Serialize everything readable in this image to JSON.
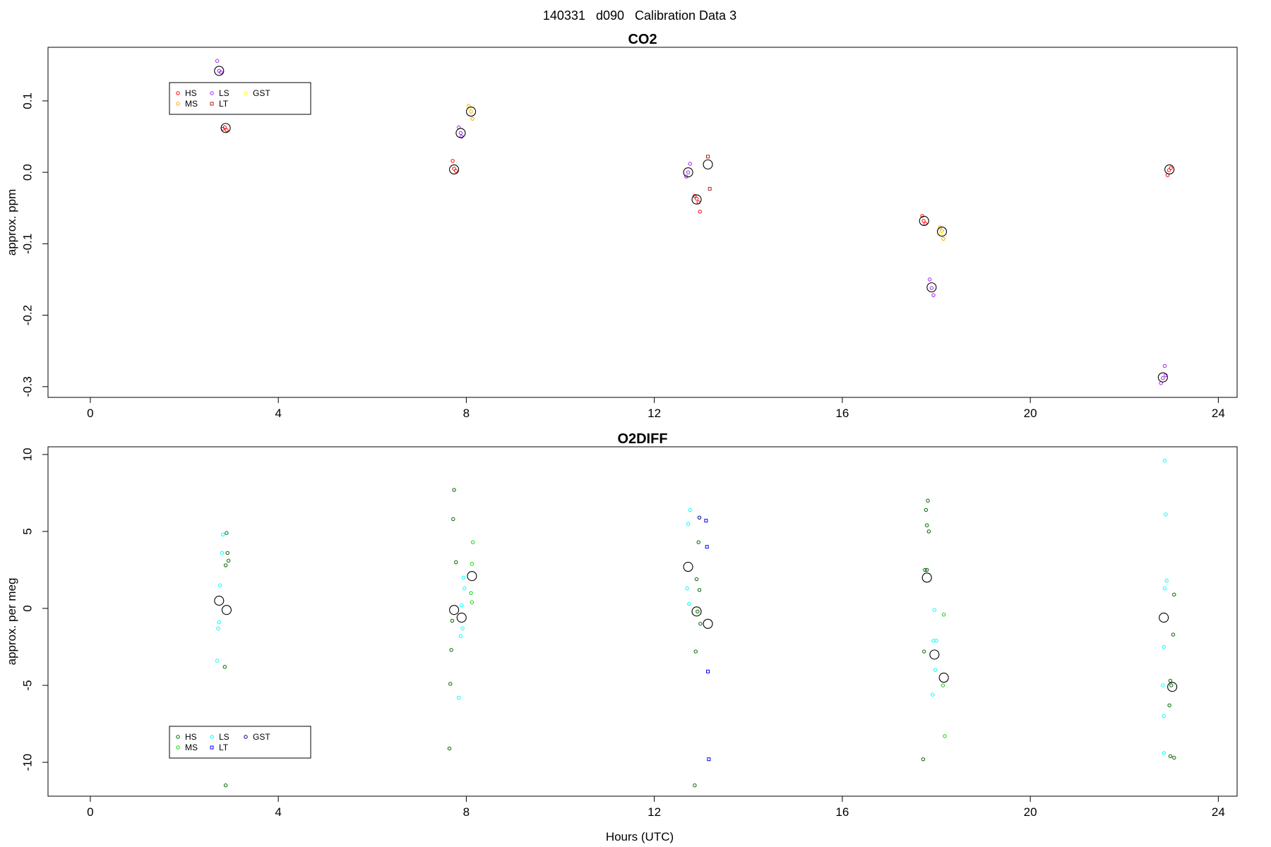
{
  "figure": {
    "title": "140331   d090   Calibration Data 3",
    "xlabel": "Hours (UTC)"
  },
  "chart_data": [
    {
      "type": "scatter",
      "title": "CO2",
      "xlabel": "",
      "ylabel": "approx. ppm",
      "xlim": [
        -0.9,
        24.4
      ],
      "ylim": [
        -0.315,
        0.175
      ],
      "xticks": [
        0,
        4,
        8,
        12,
        16,
        20,
        24
      ],
      "xticklabels": [
        "0",
        "4",
        "8",
        "12",
        "16",
        "20",
        "24"
      ],
      "yticks": [
        0.1,
        0.0,
        -0.1,
        -0.2,
        -0.3
      ],
      "yticklabels": [
        "0.1",
        "0.0",
        "-0.1",
        "-0.2",
        "-0.3"
      ],
      "grid": false,
      "legend_position": "top-left",
      "legend": [
        {
          "label": "HS",
          "color": "#ff0000",
          "marker": "circle"
        },
        {
          "label": "MS",
          "color": "#ffa500",
          "marker": "circle"
        },
        {
          "label": "LS",
          "color": "#a020f0",
          "marker": "circle"
        },
        {
          "label": "LT",
          "color": "#b22222",
          "marker": "square"
        },
        {
          "label": "GST",
          "color": "#ffff00",
          "marker": "circle"
        }
      ],
      "series": [
        {
          "name": "HS",
          "color": "#ff0000",
          "marker": "circle",
          "points": [
            [
              2.86,
              0.063
            ],
            [
              2.9,
              0.059
            ],
            [
              2.82,
              0.061
            ],
            [
              7.74,
              0.005
            ],
            [
              7.78,
              0.002
            ],
            [
              7.71,
              0.016
            ],
            [
              12.9,
              -0.037
            ],
            [
              12.94,
              -0.042
            ],
            [
              12.86,
              -0.033
            ],
            [
              12.97,
              -0.055
            ],
            [
              17.73,
              -0.068
            ],
            [
              17.77,
              -0.072
            ],
            [
              17.7,
              -0.061
            ],
            [
              22.95,
              0.003
            ],
            [
              22.99,
              0.006
            ],
            [
              22.92,
              -0.004
            ]
          ]
        },
        {
          "name": "MS",
          "color": "#ffa500",
          "marker": "circle",
          "points": [
            [
              8.1,
              0.085
            ],
            [
              8.05,
              0.093
            ],
            [
              8.13,
              0.075
            ],
            [
              18.12,
              -0.082
            ],
            [
              18.08,
              -0.077
            ],
            [
              18.15,
              -0.093
            ]
          ]
        },
        {
          "name": "LS",
          "color": "#a020f0",
          "marker": "circle",
          "points": [
            [
              2.74,
              0.142
            ],
            [
              2.7,
              0.156
            ],
            [
              2.78,
              0.14
            ],
            [
              7.88,
              0.055
            ],
            [
              7.84,
              0.063
            ],
            [
              7.9,
              0.05
            ],
            [
              12.72,
              0.0
            ],
            [
              12.76,
              0.012
            ],
            [
              12.68,
              -0.006
            ],
            [
              17.9,
              -0.162
            ],
            [
              17.86,
              -0.15
            ],
            [
              17.94,
              -0.172
            ],
            [
              22.82,
              -0.288
            ],
            [
              22.86,
              -0.271
            ],
            [
              22.78,
              -0.295
            ],
            [
              22.88,
              -0.284
            ]
          ]
        },
        {
          "name": "LT",
          "color": "#b22222",
          "marker": "square",
          "points": [
            [
              13.14,
              0.022
            ],
            [
              13.18,
              -0.023
            ]
          ]
        },
        {
          "name": "GST",
          "color": "#ffff00",
          "marker": "circle",
          "points": [
            [
              8.08,
              0.09
            ],
            [
              18.1,
              -0.085
            ]
          ]
        },
        {
          "name": "",
          "color": "#000000",
          "marker": "mean",
          "points": [
            [
              2.74,
              0.142
            ],
            [
              2.88,
              0.062
            ],
            [
              7.74,
              0.004
            ],
            [
              7.88,
              0.055
            ],
            [
              8.1,
              0.085
            ],
            [
              12.72,
              0.0
            ],
            [
              12.9,
              -0.038
            ],
            [
              13.14,
              0.011
            ],
            [
              17.74,
              -0.068
            ],
            [
              17.9,
              -0.161
            ],
            [
              18.12,
              -0.083
            ],
            [
              22.82,
              -0.287
            ],
            [
              22.96,
              0.004
            ]
          ]
        }
      ]
    },
    {
      "type": "scatter",
      "title": "O2DIFF",
      "xlabel": "Hours (UTC)",
      "ylabel": "approx. per meg",
      "xlim": [
        -0.9,
        24.4
      ],
      "ylim": [
        -12.2,
        10.5
      ],
      "xticks": [
        0,
        4,
        8,
        12,
        16,
        20,
        24
      ],
      "xticklabels": [
        "0",
        "4",
        "8",
        "12",
        "16",
        "20",
        "24"
      ],
      "yticks": [
        10,
        5,
        0,
        -5,
        -10
      ],
      "yticklabels": [
        "10",
        "5",
        "0",
        "-5",
        "-10"
      ],
      "grid": false,
      "legend_position": "bottom-left",
      "legend": [
        {
          "label": "HS",
          "color": "#006400",
          "marker": "circle"
        },
        {
          "label": "MS",
          "color": "#00dd00",
          "marker": "circle"
        },
        {
          "label": "LS",
          "color": "#00ffff",
          "marker": "circle"
        },
        {
          "label": "LT",
          "color": "#0000ff",
          "marker": "square"
        },
        {
          "label": "GST",
          "color": "#00008b",
          "marker": "circle"
        }
      ],
      "series": [
        {
          "name": "HS",
          "color": "#006400",
          "marker": "circle",
          "points": [
            [
              2.9,
              4.9
            ],
            [
              2.92,
              3.6
            ],
            [
              2.94,
              3.1
            ],
            [
              2.88,
              2.8
            ],
            [
              2.86,
              -3.8
            ],
            [
              2.88,
              -11.5
            ],
            [
              7.74,
              7.7
            ],
            [
              7.72,
              5.8
            ],
            [
              7.78,
              3.0
            ],
            [
              7.7,
              -0.8
            ],
            [
              7.68,
              -2.7
            ],
            [
              7.66,
              -4.9
            ],
            [
              7.64,
              -9.1
            ],
            [
              12.94,
              4.3
            ],
            [
              12.9,
              1.9
            ],
            [
              12.96,
              1.2
            ],
            [
              12.92,
              -0.2
            ],
            [
              12.98,
              -1.0
            ],
            [
              12.88,
              -2.8
            ],
            [
              12.86,
              -11.5
            ],
            [
              17.82,
              7.0
            ],
            [
              17.78,
              6.4
            ],
            [
              17.8,
              5.4
            ],
            [
              17.84,
              5.0
            ],
            [
              17.76,
              2.5
            ],
            [
              17.8,
              2.5
            ],
            [
              17.74,
              -2.8
            ],
            [
              17.72,
              -9.8
            ],
            [
              23.06,
              0.9
            ],
            [
              23.04,
              -1.7
            ],
            [
              22.98,
              -4.7
            ],
            [
              23.0,
              -5.0
            ],
            [
              22.96,
              -6.3
            ],
            [
              22.98,
              -9.6
            ],
            [
              23.06,
              -9.7
            ]
          ]
        },
        {
          "name": "MS",
          "color": "#00dd00",
          "marker": "circle",
          "points": [
            [
              8.14,
              4.3
            ],
            [
              8.12,
              2.9
            ],
            [
              8.1,
              1.0
            ],
            [
              8.12,
              0.4
            ],
            [
              18.16,
              -0.4
            ],
            [
              18.14,
              -5.0
            ],
            [
              18.18,
              -8.3
            ]
          ]
        },
        {
          "name": "LS",
          "color": "#00ffff",
          "marker": "circle",
          "points": [
            [
              2.82,
              4.8
            ],
            [
              2.8,
              3.6
            ],
            [
              2.76,
              1.5
            ],
            [
              2.74,
              -0.9
            ],
            [
              2.72,
              -1.3
            ],
            [
              2.7,
              -3.4
            ],
            [
              7.94,
              2.0
            ],
            [
              7.96,
              1.3
            ],
            [
              7.9,
              0.2
            ],
            [
              7.92,
              -1.3
            ],
            [
              7.88,
              -1.8
            ],
            [
              7.84,
              -5.8
            ],
            [
              12.76,
              6.4
            ],
            [
              12.72,
              5.5
            ],
            [
              12.7,
              1.3
            ],
            [
              12.74,
              0.3
            ],
            [
              17.96,
              -0.1
            ],
            [
              17.94,
              -2.1
            ],
            [
              18.0,
              -2.1
            ],
            [
              17.98,
              -4.0
            ],
            [
              17.92,
              -5.6
            ],
            [
              22.86,
              9.6
            ],
            [
              22.88,
              6.1
            ],
            [
              22.9,
              1.8
            ],
            [
              22.86,
              1.3
            ],
            [
              22.84,
              -2.5
            ],
            [
              22.82,
              -5.0
            ],
            [
              22.84,
              -7.0
            ],
            [
              22.84,
              -9.4
            ]
          ]
        },
        {
          "name": "LT",
          "color": "#0000ff",
          "marker": "square",
          "points": [
            [
              13.1,
              5.7
            ],
            [
              13.12,
              4.0
            ],
            [
              13.14,
              -4.1
            ],
            [
              13.16,
              -9.8
            ]
          ]
        },
        {
          "name": "GST",
          "color": "#00008b",
          "marker": "circle",
          "points": [
            [
              12.96,
              5.9
            ]
          ]
        },
        {
          "name": "",
          "color": "#000000",
          "marker": "mean",
          "points": [
            [
              2.74,
              0.5
            ],
            [
              2.9,
              -0.1
            ],
            [
              7.74,
              -0.1
            ],
            [
              7.9,
              -0.6
            ],
            [
              8.12,
              2.1
            ],
            [
              12.72,
              2.7
            ],
            [
              12.9,
              -0.2
            ],
            [
              13.14,
              -1.0
            ],
            [
              17.8,
              2.0
            ],
            [
              17.96,
              -3.0
            ],
            [
              18.16,
              -4.5
            ],
            [
              22.84,
              -0.6
            ],
            [
              23.02,
              -5.1
            ]
          ]
        }
      ]
    }
  ]
}
